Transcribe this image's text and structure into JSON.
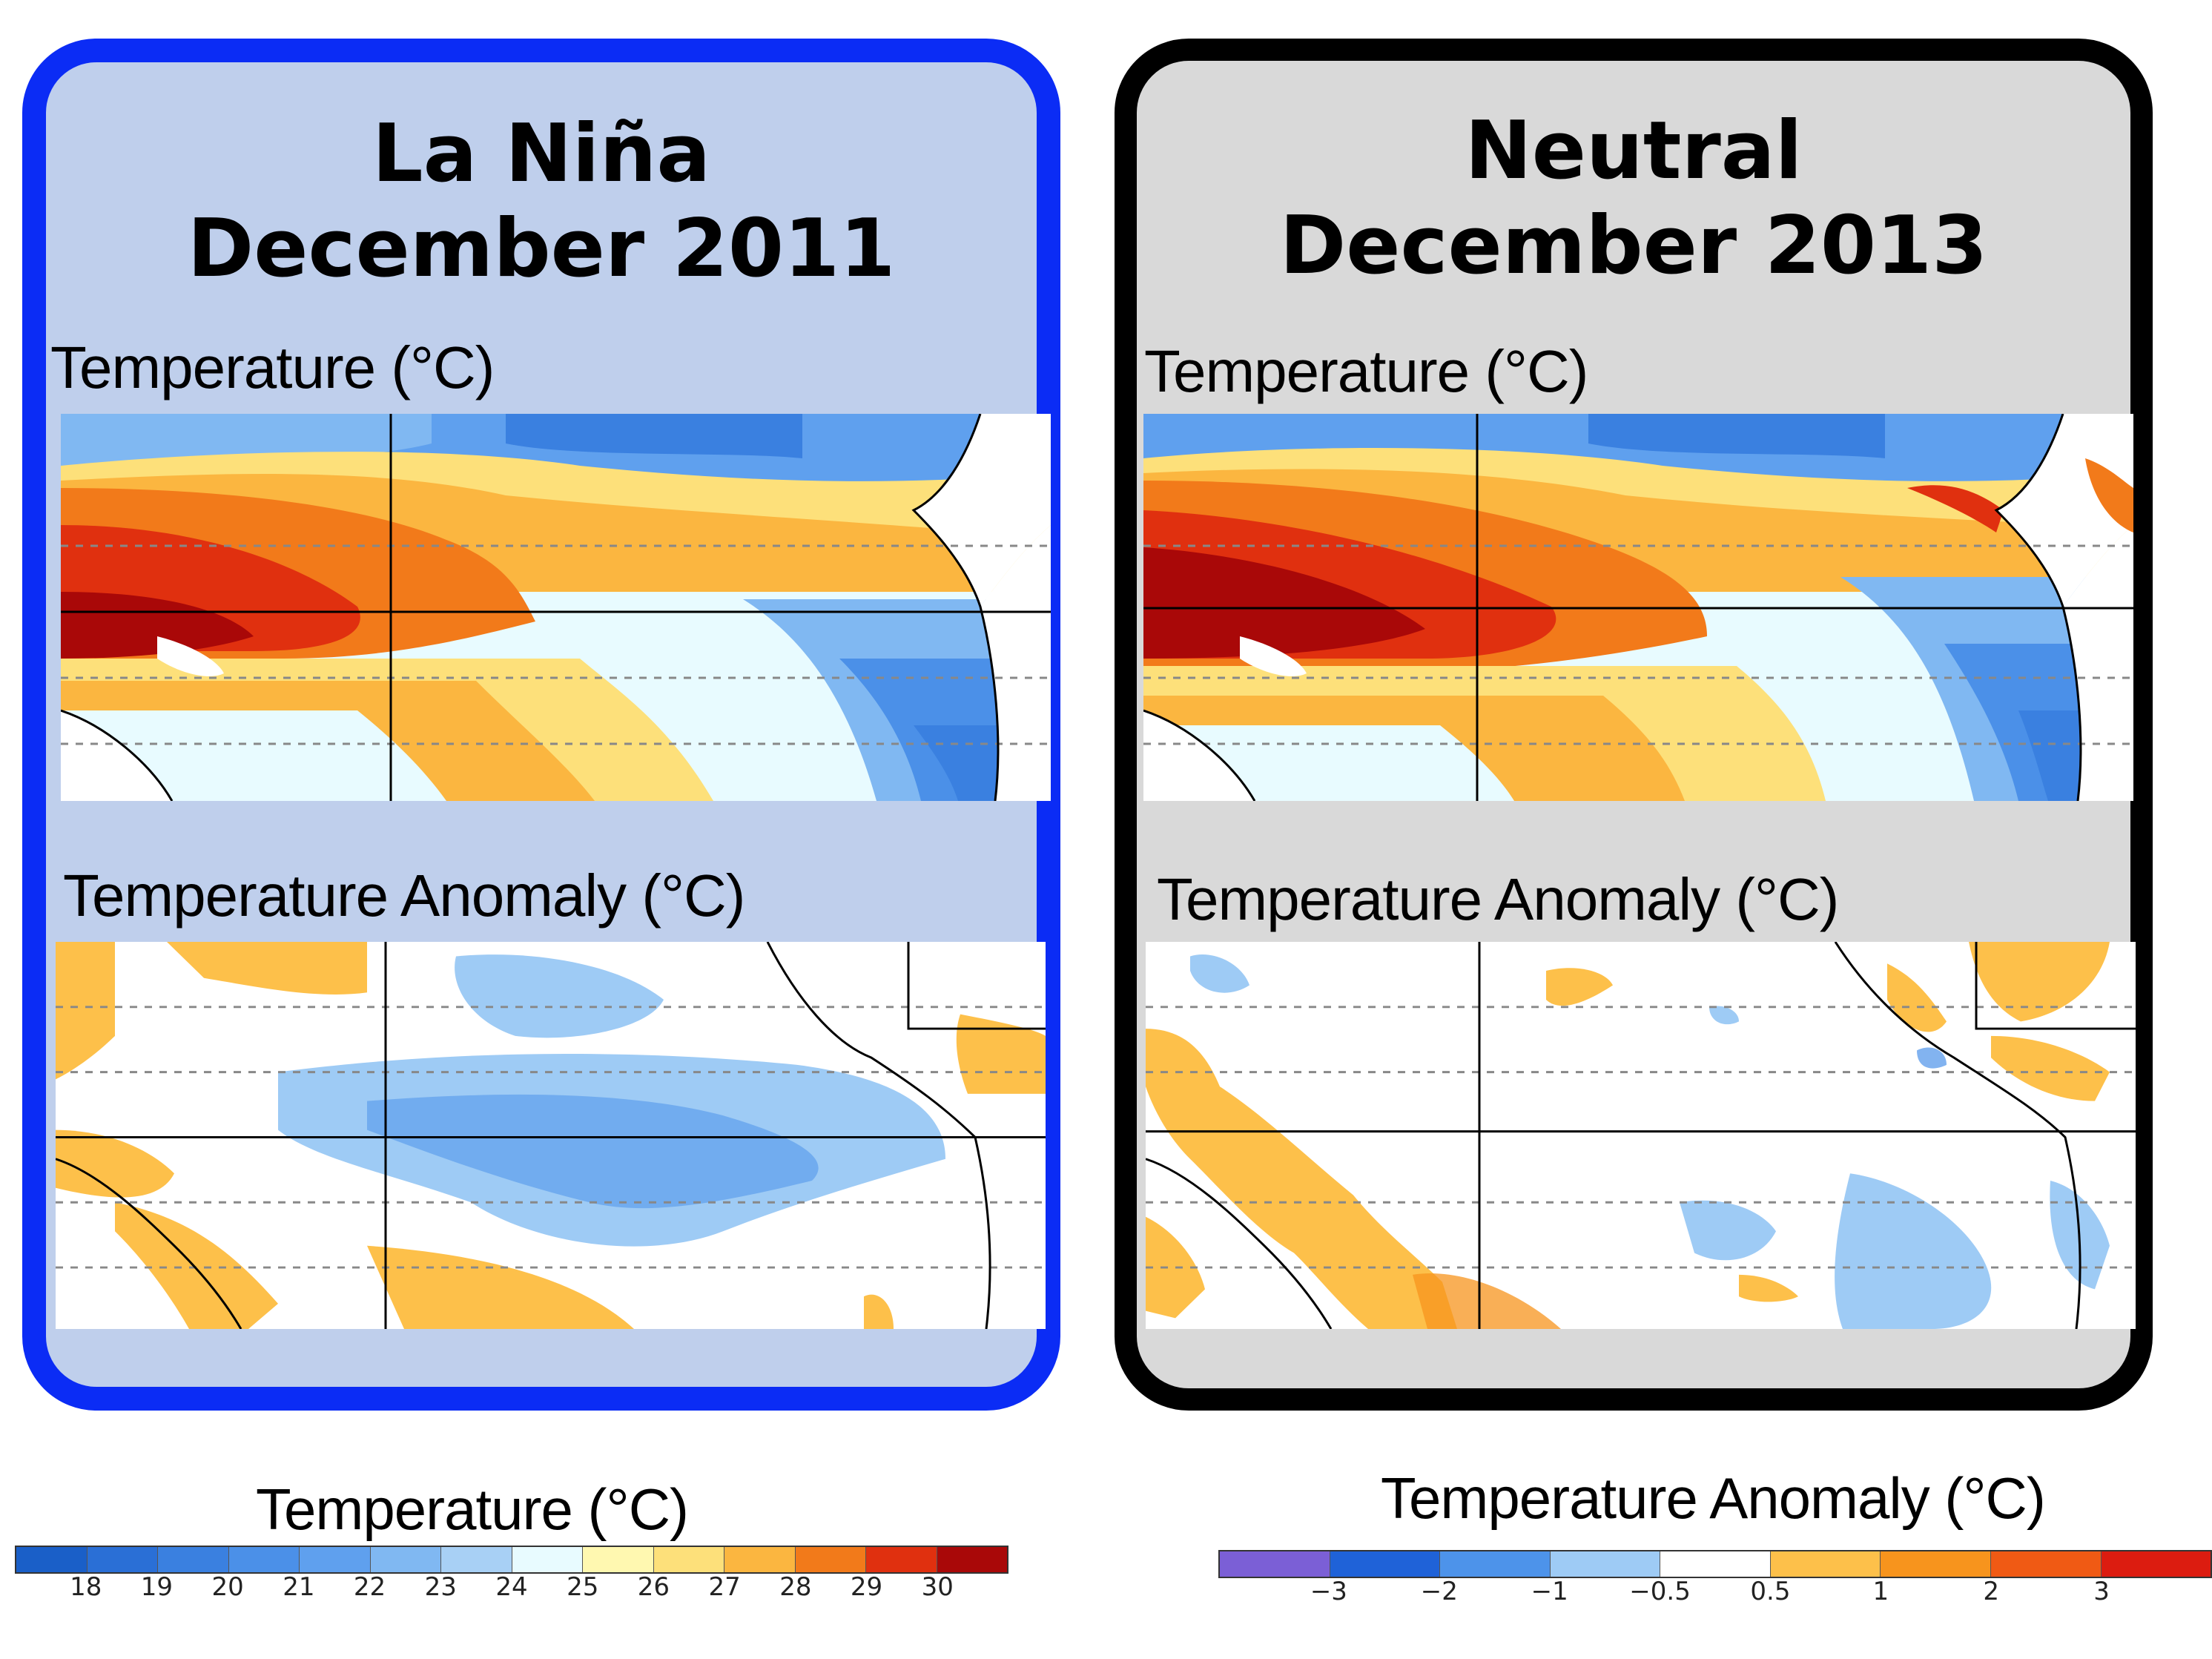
{
  "panels": [
    {
      "title_line1": "La Niña",
      "title_line2": "December 2011",
      "temp_label": "Temperature (°C)",
      "anom_label": "Temperature Anomaly (°C)",
      "border_color": "#0b2cf5",
      "background": "#bfcfec"
    },
    {
      "title_line1": "Neutral",
      "title_line2": "December 2013",
      "temp_label": "Temperature (°C)",
      "anom_label": "Temperature Anomaly (°C)",
      "border_color": "#000000",
      "background": "#d9d9d9"
    }
  ],
  "temp_colorbar": {
    "title": "Temperature (°C)",
    "ticks": [
      "18",
      "19",
      "20",
      "21",
      "22",
      "23",
      "24",
      "25",
      "26",
      "27",
      "28",
      "29",
      "30"
    ],
    "colors": [
      "#1a5fc8",
      "#2a6fd6",
      "#3a80e0",
      "#4b90e8",
      "#5fa0ee",
      "#80b8f2",
      "#a8d0f5",
      "#e8fbff",
      "#fff8b0",
      "#fde07a",
      "#fbb640",
      "#f27a1a",
      "#e0300f",
      "#a90808"
    ]
  },
  "anom_colorbar": {
    "title": "Temperature Anomaly (°C)",
    "ticks": [
      "−3",
      "−2",
      "−1",
      "−0.5",
      "0.5",
      "1",
      "2",
      "3"
    ],
    "colors": [
      "#7b5fd6",
      "#1f62d8",
      "#4d93ea",
      "#9ecbf5",
      "#ffffff",
      "#fdc04a",
      "#f7941d",
      "#f05a14",
      "#dc1c10"
    ]
  },
  "map_colors": {
    "land": "#ffffff",
    "coast": "#000000",
    "grid": "#888888"
  }
}
